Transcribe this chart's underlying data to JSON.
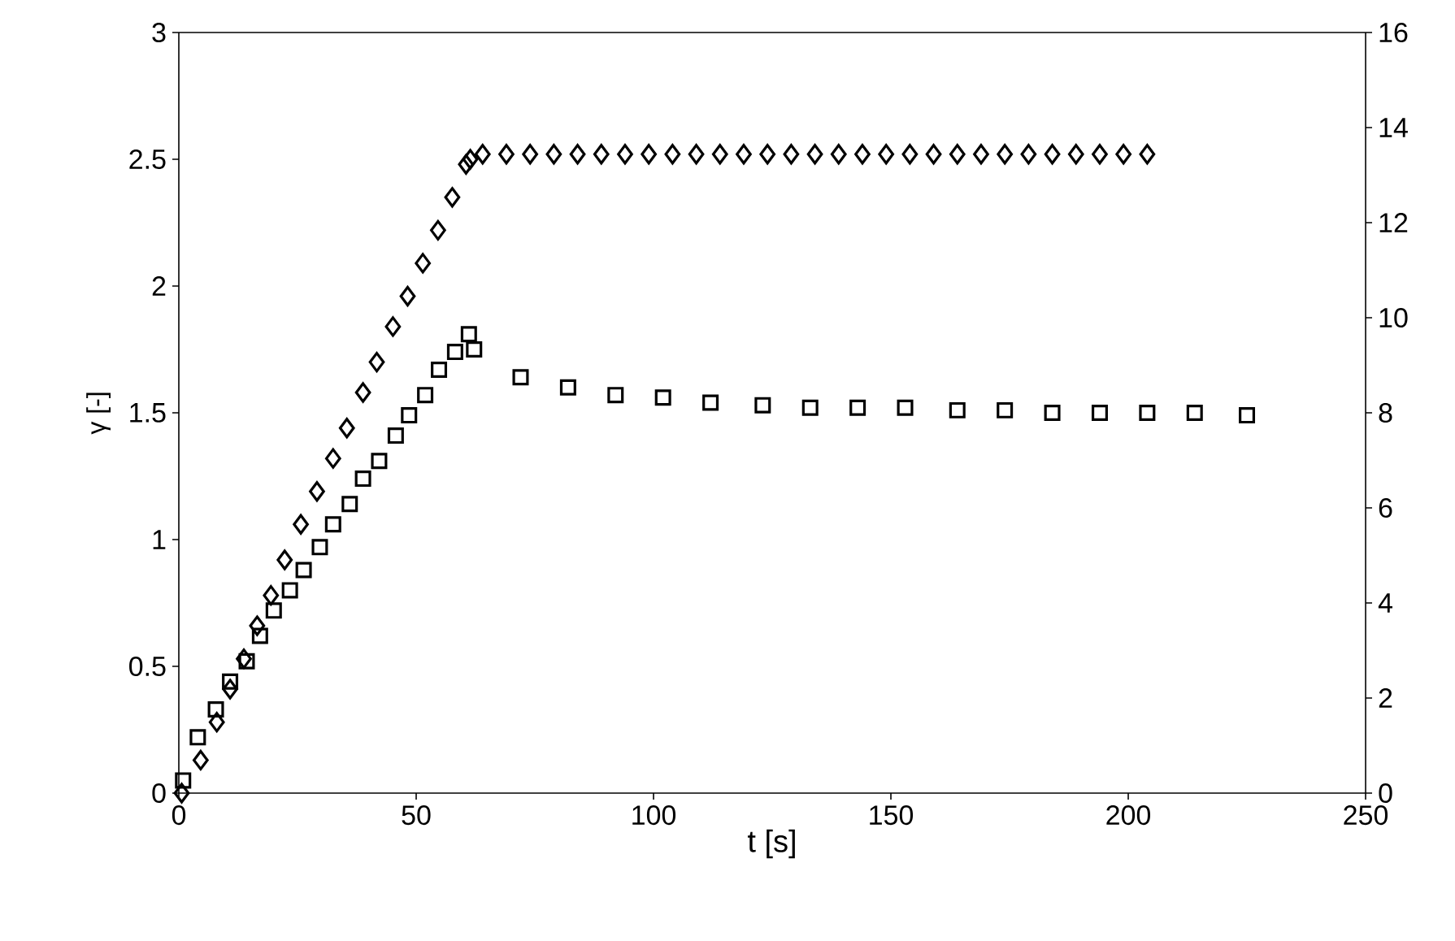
{
  "chart_data": {
    "type": "scatter",
    "xlabel": "t [s]",
    "ylabel": "γ [-]",
    "xlim": [
      0,
      250
    ],
    "xticks": [
      0,
      50,
      100,
      150,
      200,
      250
    ],
    "ylim": [
      0,
      3
    ],
    "yticks": [
      0,
      0.5,
      1,
      1.5,
      2,
      2.5,
      3
    ],
    "y2lim": [
      0,
      16
    ],
    "y2ticks": [
      0,
      2,
      4,
      6,
      8,
      10,
      12,
      14,
      16
    ],
    "grid": false,
    "series": [
      {
        "color": "#000000",
        "marker": "square",
        "x": [
          0.9,
          4.0,
          7.8,
          10.8,
          14.3,
          17.1,
          20.0,
          23.4,
          26.3,
          29.7,
          32.5,
          36.0,
          38.8,
          42.2,
          45.7,
          48.5,
          51.9,
          54.8,
          58.2,
          61.1,
          62.2,
          72,
          82,
          92,
          102,
          112,
          123,
          133,
          143,
          153,
          164,
          174,
          184,
          194,
          204,
          214,
          225
        ],
        "values": [
          0.05,
          0.22,
          0.33,
          0.44,
          0.52,
          0.62,
          0.72,
          0.8,
          0.88,
          0.97,
          1.06,
          1.14,
          1.24,
          1.31,
          1.41,
          1.49,
          1.57,
          1.67,
          1.74,
          1.81,
          1.75,
          1.64,
          1.6,
          1.57,
          1.56,
          1.54,
          1.53,
          1.52,
          1.52,
          1.52,
          1.51,
          1.51,
          1.5,
          1.5,
          1.5,
          1.5,
          1.49
        ]
      },
      {
        "color": "#000000",
        "marker": "diamond",
        "x": [
          0.6,
          4.6,
          8.0,
          10.8,
          13.7,
          16.5,
          19.4,
          22.3,
          25.7,
          29.1,
          32.5,
          35.4,
          38.8,
          41.7,
          45.1,
          48.2,
          51.4,
          54.6,
          57.6,
          60.5,
          61.4,
          64,
          69,
          74,
          79,
          84,
          89,
          94,
          99,
          104,
          109,
          114,
          119,
          124,
          129,
          134,
          139,
          144,
          149,
          154,
          159,
          164,
          169,
          174,
          179,
          184,
          189,
          194,
          199,
          204
        ],
        "values": [
          0,
          0.13,
          0.28,
          0.41,
          0.53,
          0.66,
          0.78,
          0.92,
          1.06,
          1.19,
          1.32,
          1.44,
          1.58,
          1.7,
          1.84,
          1.96,
          2.09,
          2.22,
          2.35,
          2.48,
          2.5,
          2.52,
          2.52,
          2.52,
          2.52,
          2.52,
          2.52,
          2.52,
          2.52,
          2.52,
          2.52,
          2.52,
          2.52,
          2.52,
          2.52,
          2.52,
          2.52,
          2.52,
          2.52,
          2.52,
          2.52,
          2.52,
          2.52,
          2.52,
          2.52,
          2.52,
          2.52,
          2.52,
          2.52,
          2.52
        ]
      }
    ]
  }
}
